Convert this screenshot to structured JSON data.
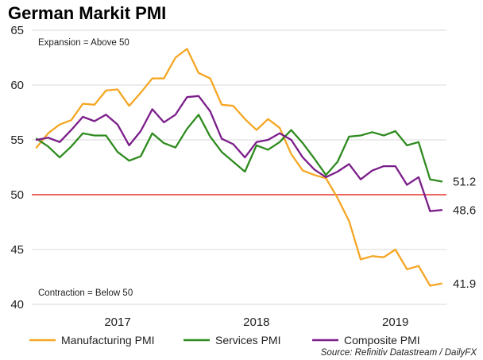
{
  "chart_data": {
    "type": "line",
    "title": "German Markit PMI",
    "xlabel": "",
    "ylabel": "",
    "ylim": [
      40,
      65
    ],
    "yticks": [
      40,
      45,
      50,
      55,
      60,
      65
    ],
    "year_ticks": [
      {
        "label": "2017",
        "index": 7
      },
      {
        "label": "2018",
        "index": 19
      },
      {
        "label": "2019",
        "index": 31
      }
    ],
    "reference_line": {
      "value": 50,
      "color": "#e8312a"
    },
    "annotations": {
      "top": "Expansion = Above 50",
      "bottom": "Contraction = Below 50"
    },
    "grid": "horizontal",
    "legend_position": "bottom",
    "series": [
      {
        "name": "Manufacturing PMI",
        "color": "#f5a623",
        "end_label": "41.9",
        "values": [
          54.3,
          55.6,
          56.4,
          56.8,
          58.3,
          58.2,
          59.5,
          59.6,
          58.1,
          59.3,
          60.6,
          60.6,
          62.5,
          63.3,
          61.1,
          60.6,
          58.2,
          58.1,
          56.9,
          55.9,
          56.9,
          56.1,
          53.7,
          52.2,
          51.8,
          51.5,
          49.7,
          47.6,
          44.1,
          44.4,
          44.3,
          45.0,
          43.2,
          43.5,
          41.7,
          41.9
        ]
      },
      {
        "name": "Services PMI",
        "color": "#2e8b1e",
        "end_label": "51.2",
        "values": [
          55.1,
          54.4,
          53.4,
          54.4,
          55.6,
          55.4,
          55.4,
          53.9,
          53.1,
          53.5,
          55.6,
          54.7,
          54.3,
          56.0,
          57.3,
          55.3,
          53.9,
          53.0,
          52.1,
          54.5,
          54.1,
          54.8,
          55.9,
          54.7,
          53.3,
          51.8,
          53.0,
          55.3,
          55.4,
          55.7,
          55.4,
          55.8,
          54.5,
          54.8,
          51.4,
          51.2
        ]
      },
      {
        "name": "Composite PMI",
        "color": "#7b1e8a",
        "end_label": "48.6",
        "values": [
          55.0,
          55.2,
          54.8,
          55.9,
          57.1,
          56.7,
          57.3,
          56.4,
          54.5,
          55.8,
          57.8,
          56.6,
          57.3,
          58.9,
          59.0,
          57.6,
          55.1,
          54.6,
          53.4,
          54.8,
          55.0,
          55.6,
          55.0,
          53.4,
          52.3,
          51.6,
          52.1,
          52.8,
          51.4,
          52.2,
          52.6,
          52.6,
          50.9,
          51.6,
          48.5,
          48.6
        ]
      }
    ]
  },
  "source": "Source: Refinitiv Datastream / DailyFX"
}
